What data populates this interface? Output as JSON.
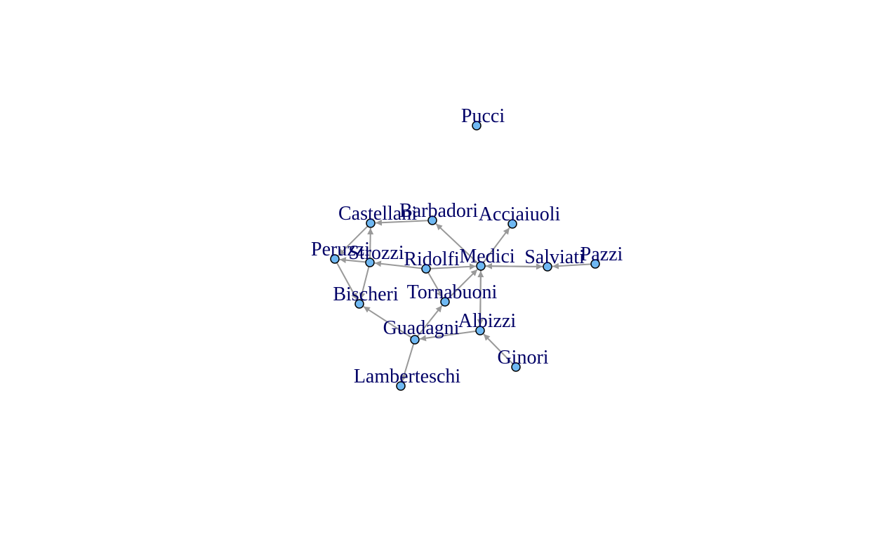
{
  "graph": {
    "colors": {
      "background": "#ffffff",
      "edge": "#999999",
      "node_fill": "#6fb8f2",
      "node_stroke": "#000000",
      "label": "#000066"
    },
    "nodes": [
      {
        "id": "pucci",
        "label": "Pucci"
      },
      {
        "id": "castellani",
        "label": "Castellani"
      },
      {
        "id": "barbadori",
        "label": "Barbadori"
      },
      {
        "id": "acciaiuoli",
        "label": "Acciaiuoli"
      },
      {
        "id": "peruzzi",
        "label": "Peruzzi"
      },
      {
        "id": "strozzi",
        "label": "Strozzi"
      },
      {
        "id": "ridolfi",
        "label": "Ridolfi"
      },
      {
        "id": "medici",
        "label": "Medici"
      },
      {
        "id": "salviati",
        "label": "Salviati"
      },
      {
        "id": "pazzi",
        "label": "Pazzi"
      },
      {
        "id": "bischeri",
        "label": "Bischeri"
      },
      {
        "id": "tornabuoni",
        "label": "Tornabuoni"
      },
      {
        "id": "albizzi",
        "label": "Albizzi"
      },
      {
        "id": "guadagni",
        "label": "Guadagni"
      },
      {
        "id": "ginori",
        "label": "Ginori"
      },
      {
        "id": "lamberteschi",
        "label": "Lamberteschi"
      }
    ],
    "edges": [
      {
        "from": "barbadori",
        "to": "castellani"
      },
      {
        "from": "castellani",
        "to": "peruzzi"
      },
      {
        "from": "strozzi",
        "to": "castellani"
      },
      {
        "from": "peruzzi",
        "to": "bischeri"
      },
      {
        "from": "strozzi",
        "to": "peruzzi"
      },
      {
        "from": "strozzi",
        "to": "bischeri"
      },
      {
        "from": "ridolfi",
        "to": "strozzi"
      },
      {
        "from": "medici",
        "to": "barbadori"
      },
      {
        "from": "medici",
        "to": "acciaiuoli"
      },
      {
        "from": "ridolfi",
        "to": "medici"
      },
      {
        "from": "ridolfi",
        "to": "tornabuoni"
      },
      {
        "from": "tornabuoni",
        "to": "medici"
      },
      {
        "from": "salviati",
        "to": "medici"
      },
      {
        "from": "medici",
        "to": "salviati"
      },
      {
        "from": "pazzi",
        "to": "salviati"
      },
      {
        "from": "albizzi",
        "to": "medici"
      },
      {
        "from": "medici",
        "to": "albizzi"
      },
      {
        "from": "guadagni",
        "to": "bischeri"
      },
      {
        "from": "guadagni",
        "to": "tornabuoni"
      },
      {
        "from": "albizzi",
        "to": "guadagni"
      },
      {
        "from": "ginori",
        "to": "albizzi"
      },
      {
        "from": "guadagni",
        "to": "lamberteschi"
      }
    ]
  }
}
